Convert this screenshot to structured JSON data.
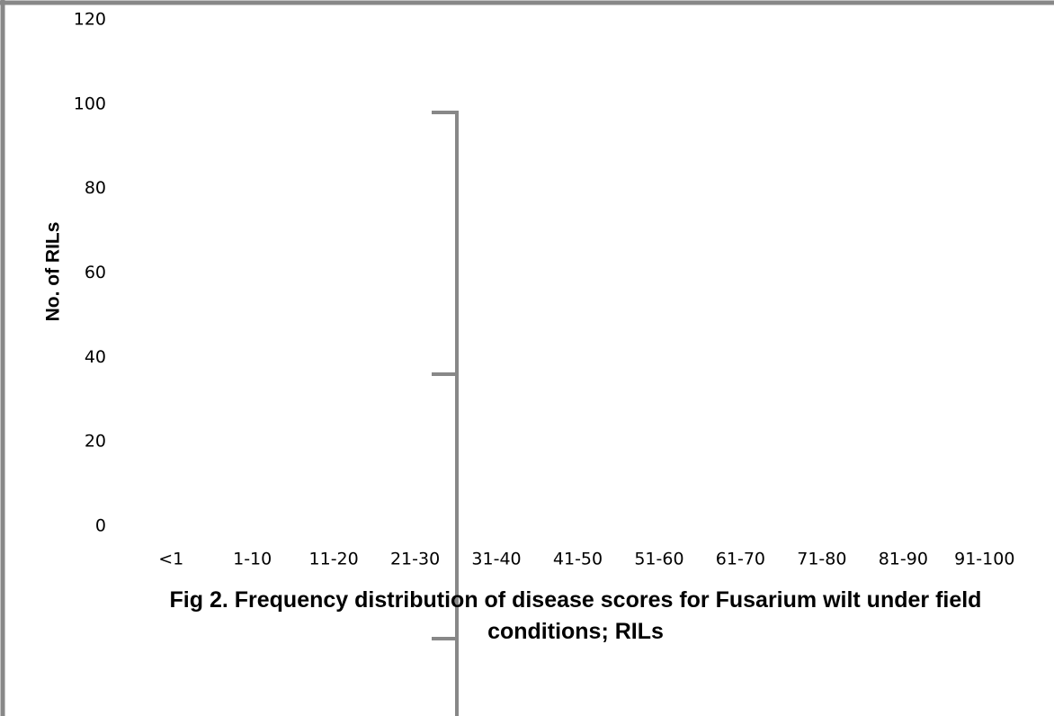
{
  "chart_data": {
    "type": "bar",
    "title": "Fig 2. Frequency distribution of disease scores for Fusarium wilt under field conditions; RILs",
    "y_label": "No. of RILs",
    "categories": [
      "<1",
      "1-10",
      "11-20",
      "21-30",
      "31-40",
      "41-50",
      "51-60",
      "61-70",
      "71-80",
      "81-90",
      "91-100"
    ],
    "ylim": [
      0,
      120
    ],
    "yticks": [
      0,
      20,
      40,
      60,
      80,
      100,
      120
    ],
    "grid": false
  }
}
